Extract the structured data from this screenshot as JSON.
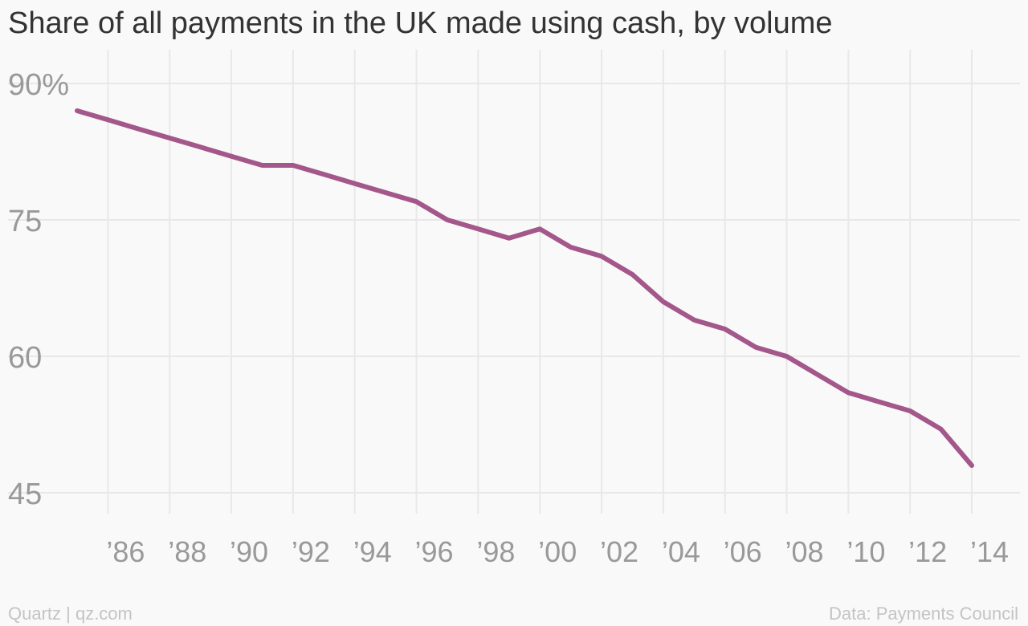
{
  "title": "Share of all payments in the UK made using cash, by volume",
  "footer": {
    "source_left": "Quartz | qz.com",
    "source_right": "Data: Payments Council"
  },
  "colors": {
    "line": "#a3578a",
    "grid": "#e8e8e8",
    "tick_text": "#999999"
  },
  "chart_data": {
    "type": "line",
    "title": "Share of all payments in the UK made using cash, by volume",
    "xlabel": "",
    "ylabel": "",
    "x": [
      1985,
      1986,
      1987,
      1988,
      1989,
      1990,
      1991,
      1992,
      1993,
      1994,
      1995,
      1996,
      1997,
      1998,
      1999,
      2000,
      2001,
      2002,
      2003,
      2004,
      2005,
      2006,
      2007,
      2008,
      2009,
      2010,
      2011,
      2012,
      2013,
      2014
    ],
    "series": [
      {
        "values": [
          87,
          86,
          85,
          84,
          83,
          82,
          81,
          81,
          80,
          79,
          78,
          77,
          75,
          74,
          73,
          74,
          72,
          71,
          69,
          66,
          64,
          63,
          61,
          60,
          58,
          56,
          55,
          54,
          52,
          48
        ]
      }
    ],
    "ylim": [
      45,
      90
    ],
    "yticks": [
      90,
      75,
      60,
      45
    ],
    "ytick_labels": [
      "90%",
      "75",
      "60",
      "45"
    ],
    "xticks": [
      1986,
      1988,
      1990,
      1992,
      1994,
      1996,
      1998,
      2000,
      2002,
      2004,
      2006,
      2008,
      2010,
      2012,
      2014
    ],
    "xtick_labels": [
      "’86",
      "’88",
      "’90",
      "’92",
      "’94",
      "’96",
      "’98",
      "’00",
      "’02",
      "’04",
      "’06",
      "’08",
      "’10",
      "’12",
      "’14"
    ],
    "grid": true,
    "legend": "none"
  }
}
